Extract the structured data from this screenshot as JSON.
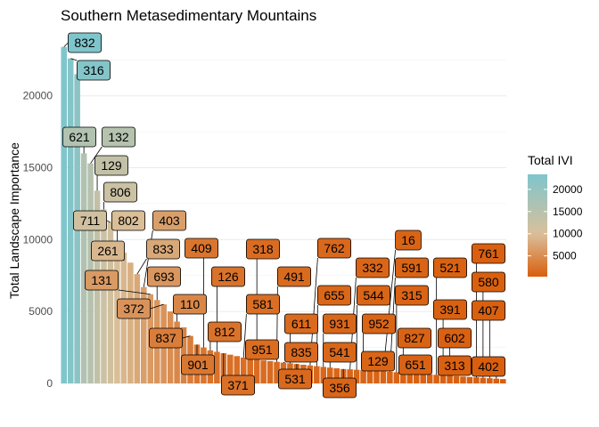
{
  "chart_data": {
    "type": "bar",
    "title": "Southern Metasedimentary Mountains",
    "xlabel": "",
    "ylabel": "Total Landscape Importance",
    "ylim": [
      0,
      24000
    ],
    "yticks": [
      0,
      5000,
      10000,
      15000,
      20000
    ],
    "grid": true,
    "legend": {
      "title": "Total IVI",
      "placement": "right",
      "ticks": [
        5000,
        10000,
        15000,
        20000
      ],
      "range": [
        300,
        23400
      ],
      "colors": [
        "#d95f0e",
        "#d9c09b",
        "#7fc5cc"
      ]
    },
    "bars": [
      {
        "value": 23400,
        "label": "832"
      },
      {
        "value": 22600,
        "label": "316"
      },
      {
        "value": 21500
      },
      {
        "value": 16000,
        "label": "621"
      },
      {
        "value": 15300,
        "label": "132"
      },
      {
        "value": 13400,
        "label": "129"
      },
      {
        "value": 12100,
        "label": "806"
      },
      {
        "value": 11200,
        "label": "711"
      },
      {
        "value": 9800,
        "label": "802"
      },
      {
        "value": 9100,
        "label": "261"
      },
      {
        "value": 8400
      },
      {
        "value": 7600,
        "label": "833"
      },
      {
        "value": 6700,
        "label": "403"
      },
      {
        "value": 6200,
        "label": "131"
      },
      {
        "value": 5800,
        "label": "693"
      },
      {
        "value": 5500,
        "label": "372"
      },
      {
        "value": 5000
      },
      {
        "value": 4300,
        "label": "110"
      },
      {
        "value": 3900
      },
      {
        "value": 3300,
        "label": "837"
      },
      {
        "value": 2700,
        "label": "901"
      },
      {
        "value": 2500,
        "label": "409"
      },
      {
        "value": 2300,
        "label": "812"
      },
      {
        "value": 2200,
        "label": "126"
      },
      {
        "value": 2100,
        "label": "371"
      },
      {
        "value": 2000
      },
      {
        "value": 1900
      },
      {
        "value": 1800,
        "label": "581"
      },
      {
        "value": 1700,
        "label": "951"
      },
      {
        "value": 1650,
        "label": "318"
      },
      {
        "value": 1600
      },
      {
        "value": 1550
      },
      {
        "value": 1500,
        "label": "491"
      },
      {
        "value": 1450,
        "label": "835"
      },
      {
        "value": 1400,
        "label": "611"
      },
      {
        "value": 1350,
        "label": "531"
      },
      {
        "value": 1300
      },
      {
        "value": 1250,
        "label": "762"
      },
      {
        "value": 1200,
        "label": "655"
      },
      {
        "value": 1150,
        "label": "931"
      },
      {
        "value": 1100,
        "label": "541"
      },
      {
        "value": 1050
      },
      {
        "value": 1000,
        "label": "356"
      },
      {
        "value": 980,
        "label": "332"
      },
      {
        "value": 950,
        "label": "544"
      },
      {
        "value": 920,
        "label": "952"
      },
      {
        "value": 900,
        "label": "129"
      },
      {
        "value": 870
      },
      {
        "value": 840,
        "label": "16"
      },
      {
        "value": 810,
        "label": "591"
      },
      {
        "value": 780,
        "label": "315"
      },
      {
        "value": 750,
        "label": "827"
      },
      {
        "value": 720,
        "label": "651"
      },
      {
        "value": 690
      },
      {
        "value": 660
      },
      {
        "value": 630
      },
      {
        "value": 600,
        "label": "521"
      },
      {
        "value": 570,
        "label": "391"
      },
      {
        "value": 540,
        "label": "602"
      },
      {
        "value": 510,
        "label": "313"
      },
      {
        "value": 480
      },
      {
        "value": 450
      },
      {
        "value": 420,
        "label": "761"
      },
      {
        "value": 390,
        "label": "580"
      },
      {
        "value": 360,
        "label": "407"
      },
      {
        "value": 330,
        "label": "402"
      },
      {
        "value": 300
      }
    ]
  }
}
